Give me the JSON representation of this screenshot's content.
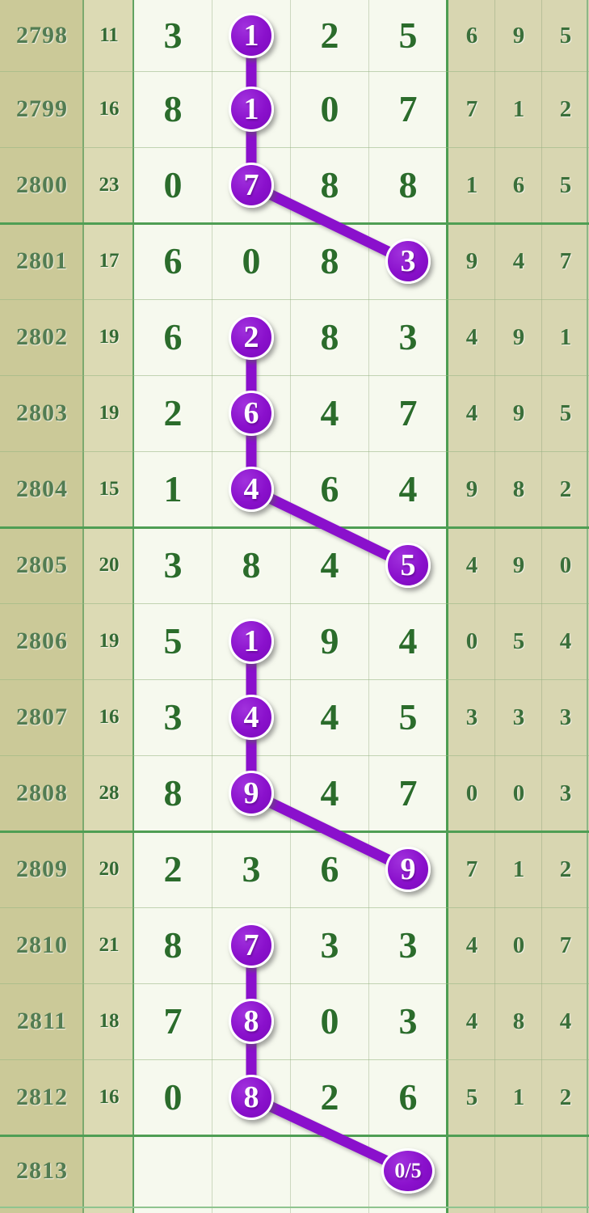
{
  "colors": {
    "accent_purple": "#8a10cc",
    "digit_green": "#2b6c2b",
    "period_bg": "#cbc998",
    "sum_bg": "#dcdab4",
    "middle_bg": "#f6f9ee",
    "tail_bg": "#d8d6b1",
    "grid_green": "#4f9e54"
  },
  "chart_data": {
    "type": "table",
    "columns": [
      "period",
      "sum",
      "digit1",
      "digit2",
      "digit3",
      "digit4",
      "tail1",
      "tail2",
      "tail3"
    ],
    "rows": [
      {
        "period": "2798",
        "sum": "11",
        "digits": [
          "3",
          "1",
          "2",
          "5"
        ],
        "tail": [
          "6",
          "9",
          "5"
        ]
      },
      {
        "period": "2799",
        "sum": "16",
        "digits": [
          "8",
          "1",
          "0",
          "7"
        ],
        "tail": [
          "7",
          "1",
          "2"
        ]
      },
      {
        "period": "2800",
        "sum": "23",
        "digits": [
          "0",
          "7",
          "8",
          "8"
        ],
        "tail": [
          "1",
          "6",
          "5"
        ]
      },
      {
        "period": "2801",
        "sum": "17",
        "digits": [
          "6",
          "0",
          "8",
          "3"
        ],
        "tail": [
          "9",
          "4",
          "7"
        ]
      },
      {
        "period": "2802",
        "sum": "19",
        "digits": [
          "6",
          "2",
          "8",
          "3"
        ],
        "tail": [
          "4",
          "9",
          "1"
        ]
      },
      {
        "period": "2803",
        "sum": "19",
        "digits": [
          "2",
          "6",
          "4",
          "7"
        ],
        "tail": [
          "4",
          "9",
          "5"
        ]
      },
      {
        "period": "2804",
        "sum": "15",
        "digits": [
          "1",
          "4",
          "6",
          "4"
        ],
        "tail": [
          "9",
          "8",
          "2"
        ]
      },
      {
        "period": "2805",
        "sum": "20",
        "digits": [
          "3",
          "8",
          "4",
          "5"
        ],
        "tail": [
          "4",
          "9",
          "0"
        ]
      },
      {
        "period": "2806",
        "sum": "19",
        "digits": [
          "5",
          "1",
          "9",
          "4"
        ],
        "tail": [
          "0",
          "5",
          "4"
        ]
      },
      {
        "period": "2807",
        "sum": "16",
        "digits": [
          "3",
          "4",
          "4",
          "5"
        ],
        "tail": [
          "3",
          "3",
          "3"
        ]
      },
      {
        "period": "2808",
        "sum": "28",
        "digits": [
          "8",
          "9",
          "4",
          "7"
        ],
        "tail": [
          "0",
          "0",
          "3"
        ]
      },
      {
        "period": "2809",
        "sum": "20",
        "digits": [
          "2",
          "3",
          "6",
          "9"
        ],
        "tail": [
          "7",
          "1",
          "2"
        ]
      },
      {
        "period": "2810",
        "sum": "21",
        "digits": [
          "8",
          "7",
          "3",
          "3"
        ],
        "tail": [
          "4",
          "0",
          "7"
        ]
      },
      {
        "period": "2811",
        "sum": "18",
        "digits": [
          "7",
          "8",
          "0",
          "3"
        ],
        "tail": [
          "4",
          "8",
          "4"
        ]
      },
      {
        "period": "2812",
        "sum": "16",
        "digits": [
          "0",
          "8",
          "2",
          "6"
        ],
        "tail": [
          "5",
          "1",
          "2"
        ]
      },
      {
        "period": "2813",
        "sum": "",
        "digits": [
          "",
          "",
          "",
          ""
        ],
        "tail": [
          "",
          "",
          ""
        ]
      }
    ],
    "marks": [
      {
        "row": 0,
        "col": 1,
        "label": "1"
      },
      {
        "row": 1,
        "col": 1,
        "label": "1"
      },
      {
        "row": 2,
        "col": 1,
        "label": "7"
      },
      {
        "row": 3,
        "col": 3,
        "label": "3"
      },
      {
        "row": 4,
        "col": 1,
        "label": "2"
      },
      {
        "row": 5,
        "col": 1,
        "label": "6"
      },
      {
        "row": 6,
        "col": 1,
        "label": "4"
      },
      {
        "row": 7,
        "col": 3,
        "label": "5"
      },
      {
        "row": 8,
        "col": 1,
        "label": "1"
      },
      {
        "row": 9,
        "col": 1,
        "label": "4"
      },
      {
        "row": 10,
        "col": 1,
        "label": "9"
      },
      {
        "row": 11,
        "col": 3,
        "label": "9"
      },
      {
        "row": 12,
        "col": 1,
        "label": "7"
      },
      {
        "row": 13,
        "col": 1,
        "label": "8"
      },
      {
        "row": 14,
        "col": 1,
        "label": "8"
      },
      {
        "row": 15,
        "col": 3,
        "label": "0/5",
        "wide": true
      }
    ],
    "chains": [
      [
        0,
        1,
        2,
        3
      ],
      [
        4,
        5,
        6,
        7
      ],
      [
        8,
        9,
        10,
        11
      ],
      [
        12,
        13,
        14,
        15
      ]
    ],
    "group_breaks_after_rows": [
      2,
      6,
      10,
      14
    ]
  }
}
